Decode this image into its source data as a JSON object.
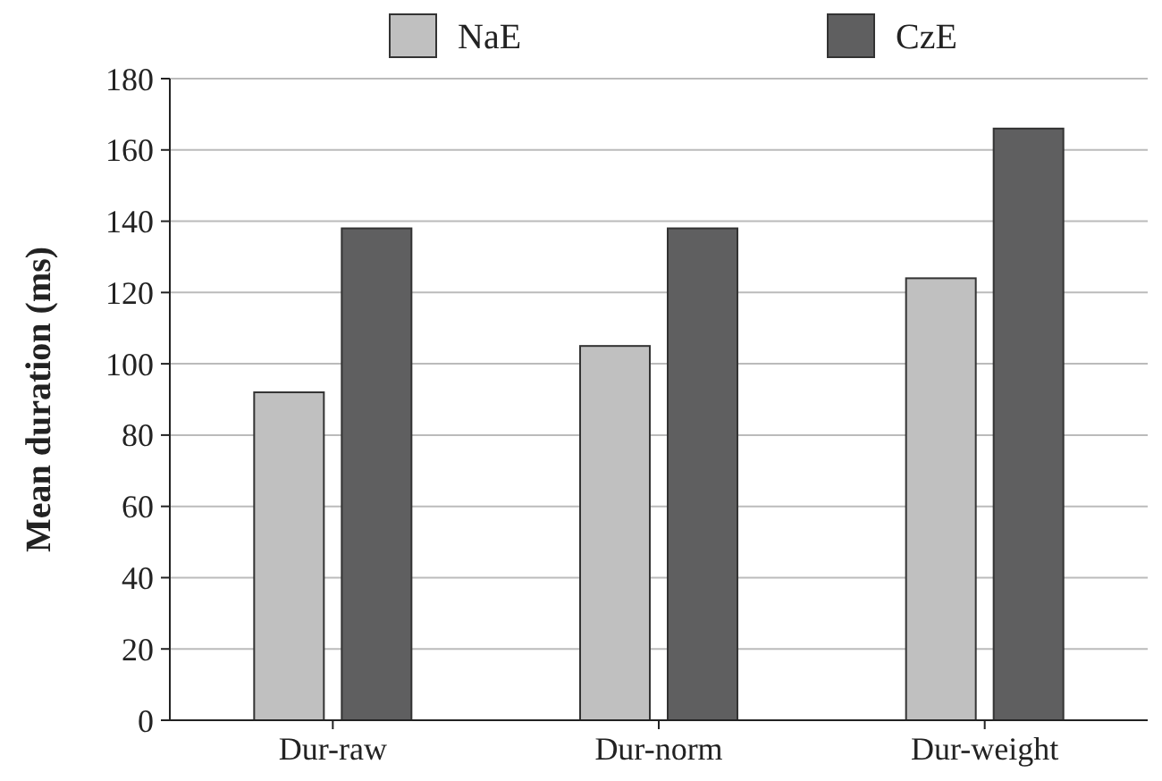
{
  "chart_data": {
    "type": "bar",
    "ylabel": "Mean duration (ms)",
    "categories": [
      "Dur-raw",
      "Dur-norm",
      "Dur-weight"
    ],
    "series": [
      {
        "name": "NaE",
        "color": "#c0c0c0",
        "values": [
          92,
          105,
          124
        ]
      },
      {
        "name": "CzE",
        "color": "#5f5f60",
        "values": [
          138,
          138,
          166
        ]
      }
    ],
    "ylim": [
      0,
      180
    ],
    "yticks": [
      0,
      20,
      40,
      60,
      80,
      100,
      120,
      140,
      160,
      180
    ],
    "grid": "y",
    "legend": "top"
  }
}
